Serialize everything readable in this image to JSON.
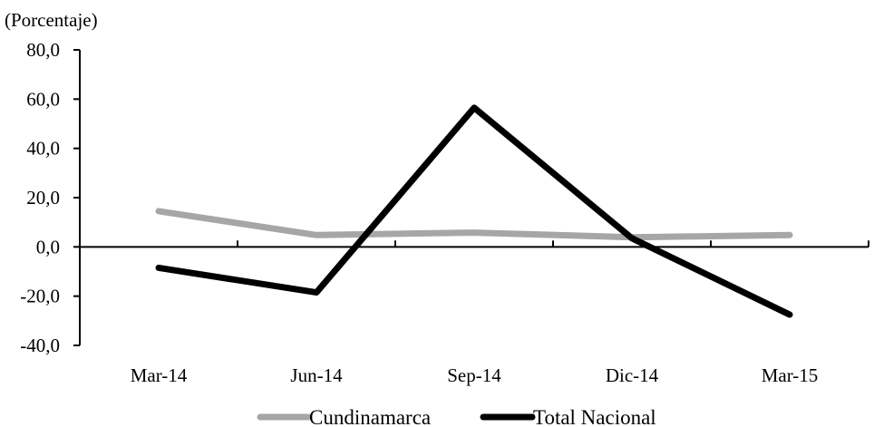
{
  "chart_data": {
    "type": "line",
    "unit_label": "(Porcentaje)",
    "categories": [
      "Mar-14",
      "Jun-14",
      "Sep-14",
      "Dic-14",
      "Mar-15"
    ],
    "y_ticks": [
      "80,0",
      "60,0",
      "40,0",
      "20,0",
      "0,0",
      "-20,0",
      "-40,0"
    ],
    "y_tick_values": [
      80,
      60,
      40,
      20,
      0,
      -20,
      -40
    ],
    "ylim": [
      -40,
      80
    ],
    "grid": false,
    "legend_position": "bottom",
    "series": [
      {
        "name": "Cundinamarca",
        "color": "#a6a6a6",
        "values": [
          14.5,
          4.8,
          5.8,
          3.9,
          4.8
        ]
      },
      {
        "name": "Total Nacional",
        "color": "#000000",
        "values": [
          -8.5,
          -18.5,
          56.5,
          3.5,
          -27.5
        ]
      }
    ]
  }
}
